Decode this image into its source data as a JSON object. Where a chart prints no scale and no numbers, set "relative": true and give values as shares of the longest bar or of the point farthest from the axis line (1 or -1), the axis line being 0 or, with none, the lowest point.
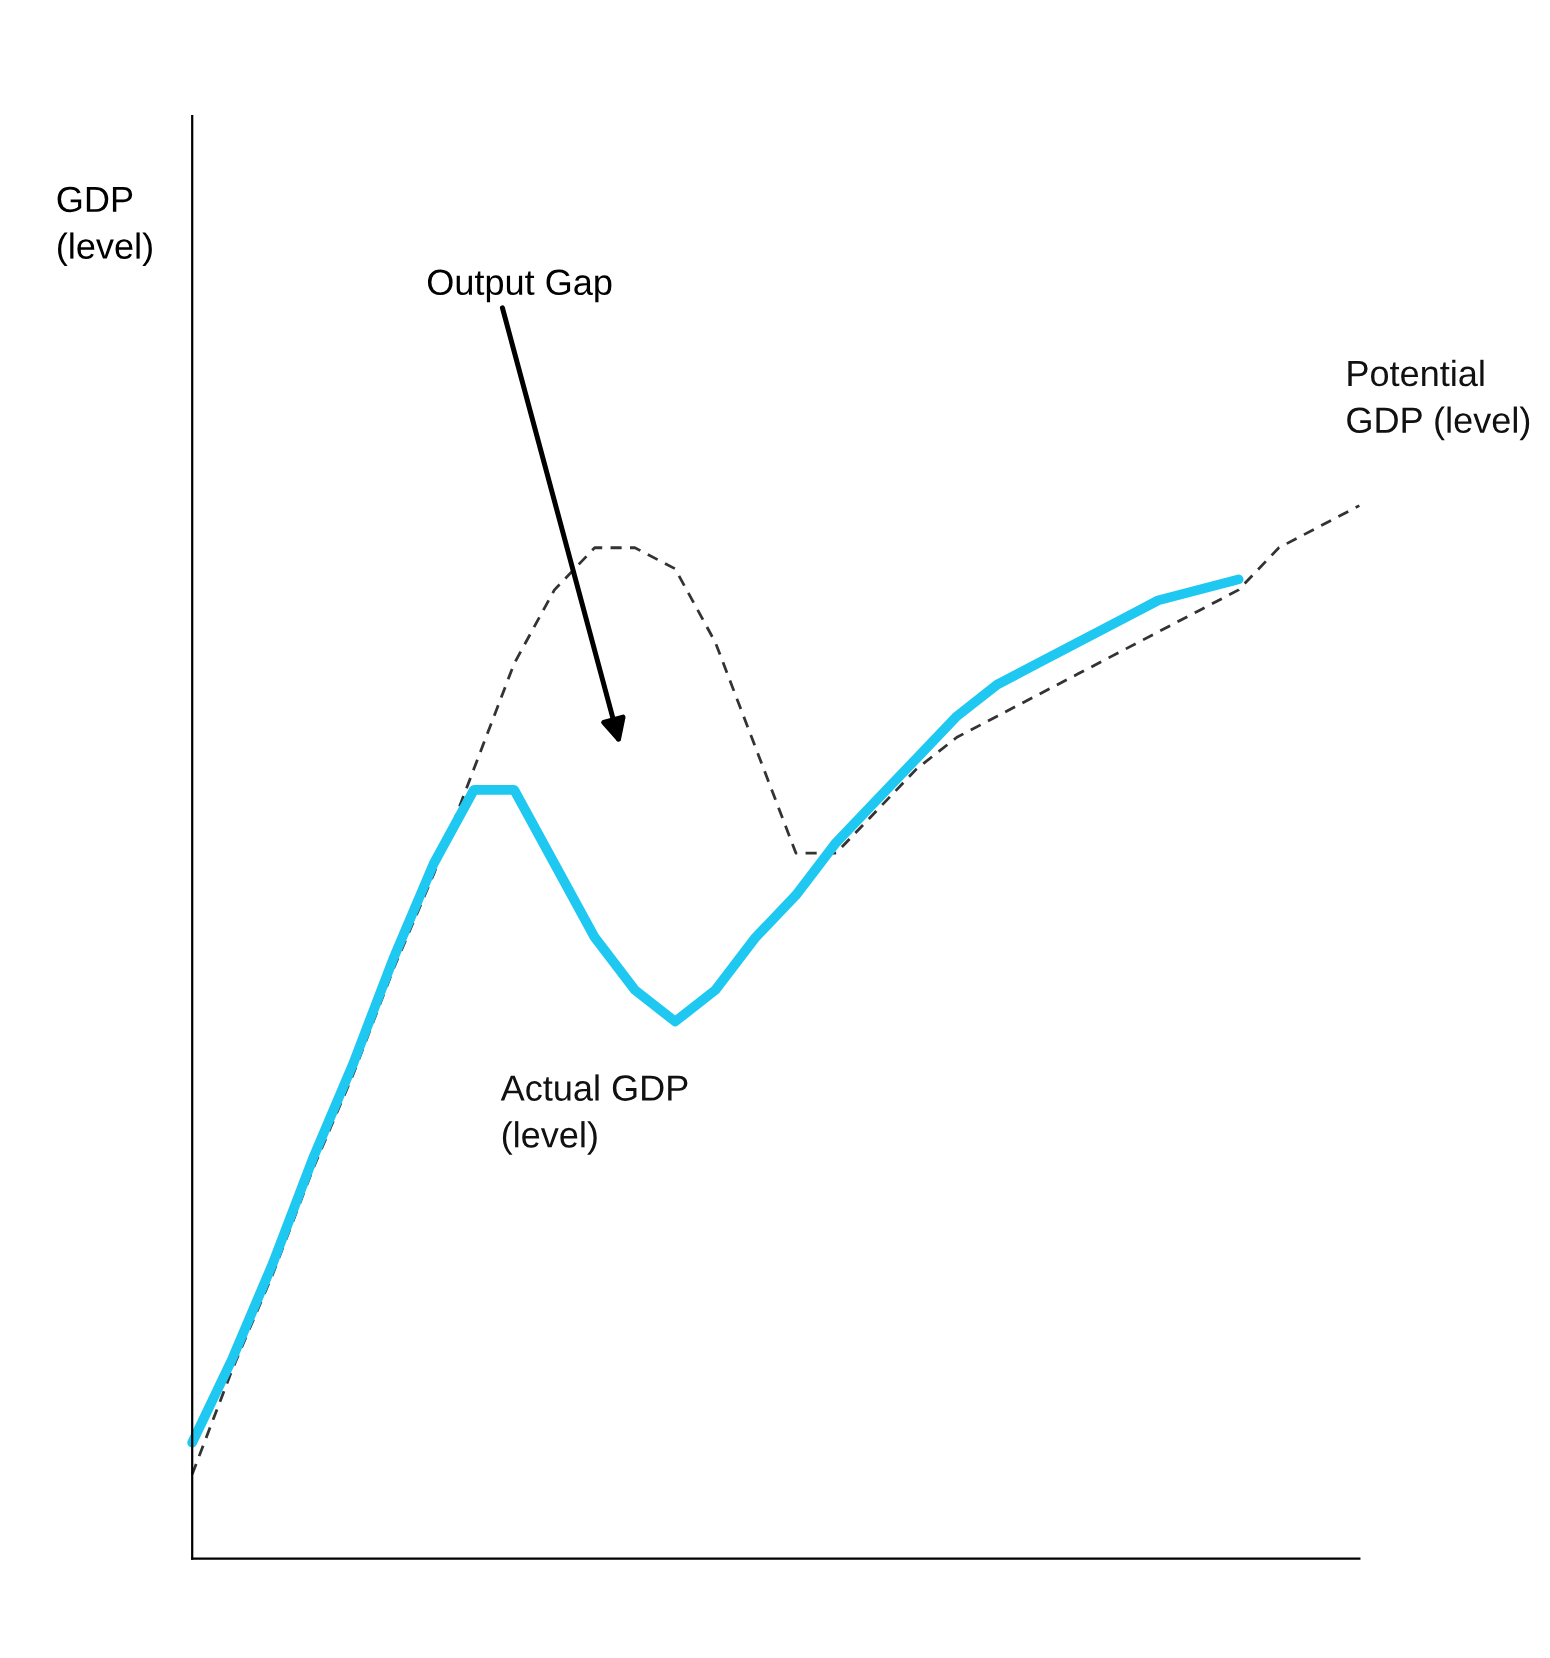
{
  "chart_data": {
    "type": "line",
    "relative": true,
    "categories": [
      null,
      null,
      null,
      null,
      null,
      null,
      null,
      null,
      null,
      null,
      null,
      null,
      null,
      null,
      null,
      null,
      null,
      null,
      null,
      null,
      null,
      null,
      null,
      null,
      null,
      null,
      null,
      null,
      null,
      null
    ],
    "series": [
      {
        "name": "Potential\nGDP (level)",
        "color": "#333333",
        "line_style": "dashed",
        "values": [
          0.08,
          0.18,
          0.27,
          0.37,
          0.46,
          0.56,
          0.65,
          0.75,
          0.85,
          0.92,
          0.96,
          0.96,
          0.94,
          0.87,
          0.77,
          0.67,
          0.67,
          0.71,
          0.75,
          0.78,
          0.8,
          0.82,
          0.84,
          0.86,
          0.88,
          0.9,
          0.92,
          0.96,
          0.98,
          1.0
        ]
      },
      {
        "name": "Actual GDP\n(level)",
        "color": "#1ec8f0",
        "line_style": "solid",
        "values": [
          0.11,
          0.19,
          0.28,
          0.38,
          0.47,
          0.57,
          0.66,
          0.73,
          0.73,
          0.66,
          0.59,
          0.54,
          0.51,
          0.54,
          0.59,
          0.63,
          0.68,
          0.72,
          0.76,
          0.8,
          0.83,
          0.85,
          0.87,
          0.89,
          0.91,
          0.92,
          0.93,
          null,
          null,
          null
        ]
      }
    ],
    "annotations": [
      "GDP\n(level)",
      "Output Gap"
    ],
    "legend": false,
    "marker": "none",
    "tick_labels": false
  }
}
